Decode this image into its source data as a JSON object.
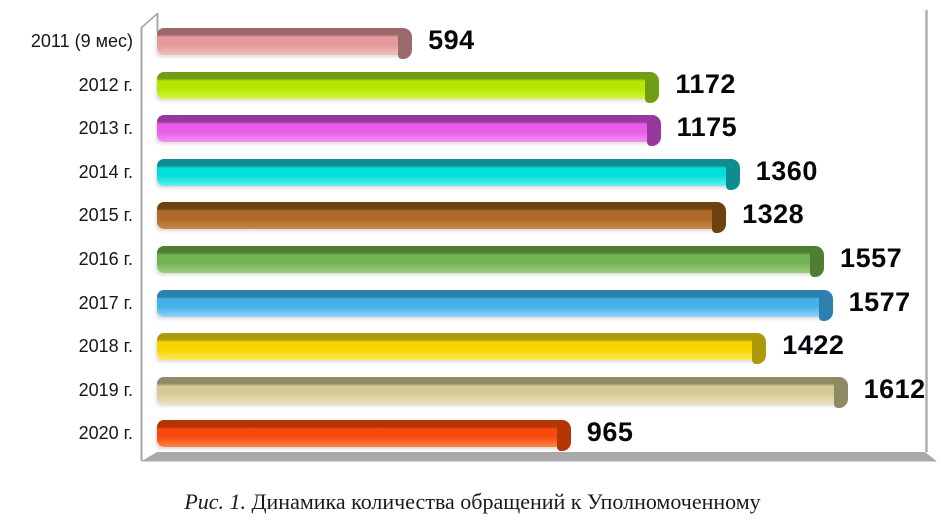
{
  "figure": {
    "caption_prefix": "Рис. 1.",
    "caption_text": "Динамика количества обращений к Уполномоченному"
  },
  "chart_data": {
    "type": "bar",
    "orientation": "horizontal",
    "title": "",
    "xlabel": "",
    "ylabel": "",
    "xlim": [
      0,
      1800
    ],
    "grid": false,
    "legend": "none",
    "value_labels_shown": true,
    "categories": [
      "2011 (9 мес)",
      "2012 г.",
      "2013 г.",
      "2014 г.",
      "2015 г.",
      "2016 г.",
      "2017 г.",
      "2018 г.",
      "2019 г.",
      "2020 г."
    ],
    "values": [
      594,
      1172,
      1175,
      1360,
      1328,
      1557,
      1577,
      1422,
      1612,
      965
    ],
    "colors": {
      "base": [
        "#e49a9c",
        "#b5e800",
        "#e85ce8",
        "#00dede",
        "#ad6a28",
        "#72b356",
        "#45b1e8",
        "#f7d500",
        "#d8c995",
        "#f94a0d"
      ],
      "dark": [
        "#9b686c",
        "#6f9e14",
        "#96399c",
        "#0f8c8f",
        "#6f4012",
        "#4f7d33",
        "#2d7fae",
        "#ad9a0a",
        "#8d8a64",
        "#b23503"
      ],
      "light": [
        "#f2bcbc",
        "#d4f248",
        "#f490f4",
        "#66efec",
        "#c98a46",
        "#9ccd80",
        "#8fd4f6",
        "#fcea60",
        "#e9e0ba",
        "#ff8347"
      ],
      "wall_gray": "#a8a8a8",
      "floor_gray": "#a9a9a9",
      "border_gray": "#b0b0b0",
      "value_text": "#06060c"
    }
  }
}
